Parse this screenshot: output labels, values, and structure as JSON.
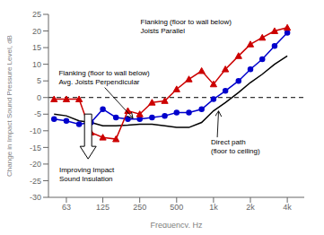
{
  "chart_data": {
    "type": "line",
    "log": "x",
    "xlabel": "Frequency, Hz",
    "ylabel": "Change in Impact Sound Pressure Level, dB",
    "x": [
      50,
      63,
      80,
      100,
      125,
      160,
      200,
      250,
      315,
      400,
      500,
      630,
      800,
      1000,
      1250,
      1600,
      2000,
      2500,
      3150,
      4000
    ],
    "series": [
      {
        "color": "#000000",
        "marker": "none",
        "values": [
          -5.0,
          -5.5,
          -7.0,
          -7.5,
          -8.5,
          -8.5,
          -8.3,
          -8.0,
          -8.0,
          -8.5,
          -9.0,
          -9.0,
          -7.5,
          -4.0,
          -1.5,
          1.5,
          4.5,
          7.0,
          10.0,
          12.5
        ]
      },
      {
        "color": "#0000cc",
        "marker": "circle",
        "values": [
          -6.5,
          -7.0,
          -8.0,
          -7.5,
          -3.5,
          -6.0,
          -6.5,
          -6.5,
          -6.0,
          -5.5,
          -4.5,
          -4.5,
          -3.5,
          -0.5,
          2.0,
          5.0,
          8.5,
          11.5,
          15.5,
          19.5
        ]
      },
      {
        "color": "#cc0000",
        "marker": "triangle",
        "values": [
          -0.5,
          -0.5,
          -0.5,
          -10.5,
          -12.0,
          -12.5,
          -4.0,
          -5.0,
          -1.5,
          -1.0,
          2.5,
          5.5,
          8.0,
          4.0,
          8.5,
          12.5,
          16.0,
          18.0,
          20.0,
          21.0
        ]
      }
    ],
    "xlim": [
      45,
      5500
    ],
    "xticks": [
      63,
      125,
      250,
      500,
      {
        "value": 1000,
        "label": "1k"
      },
      {
        "value": 2000,
        "label": "2k"
      },
      {
        "value": 4000,
        "label": "4k"
      }
    ],
    "ylim": [
      -30,
      25
    ],
    "yticks": [
      -30,
      -25,
      -20,
      -15,
      -10,
      -5,
      0,
      5,
      10,
      15,
      20,
      25
    ],
    "reference_line": 0,
    "annotations": [
      "Direct path\n(floor to ceiling)",
      "Flanking (floor to wall below)\nAvg. Joists Perpendicular",
      "Flanking (floor to wall below)\nJoists Parallel",
      "Improving Impact\nSound Insulation"
    ]
  }
}
